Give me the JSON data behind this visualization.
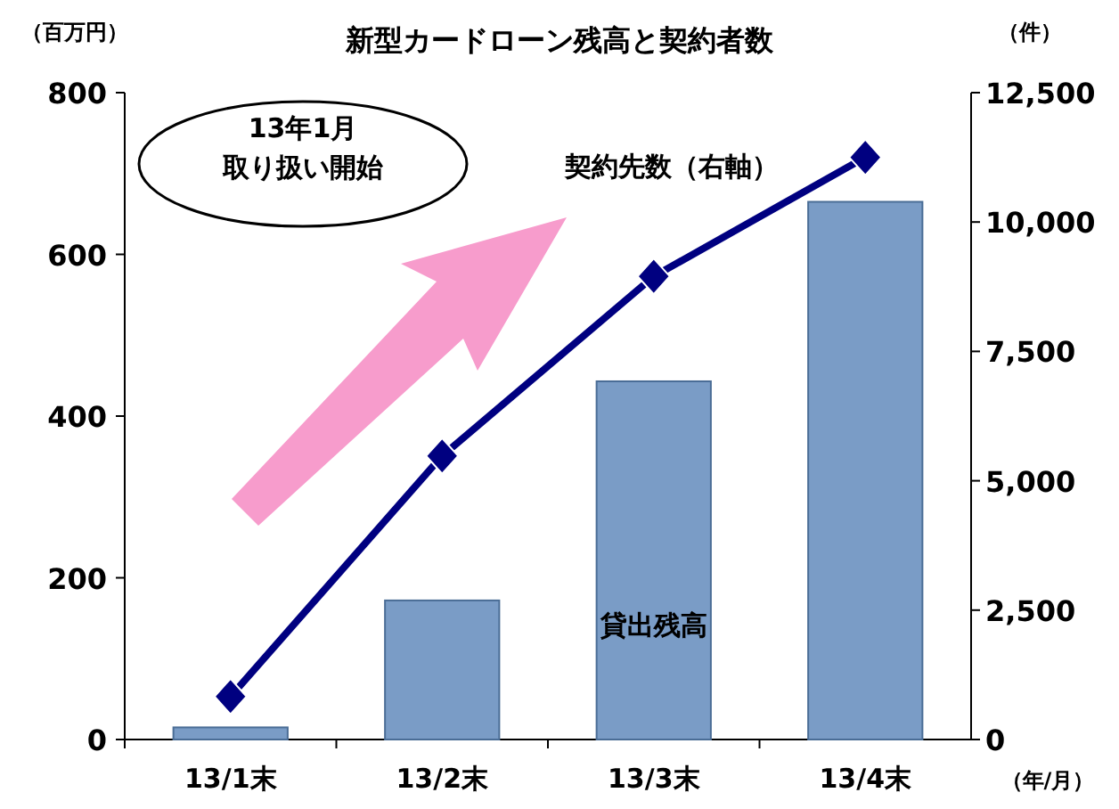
{
  "chart_data": {
    "type": "bar",
    "title": "新型カードローン残高と契約者数",
    "ylabel": "（百万円）",
    "y2label": "（件）",
    "xlabel": "（年/月）",
    "categories": [
      "13/1末",
      "13/2末",
      "13/3末",
      "13/4末"
    ],
    "series": [
      {
        "name": "貸出残高",
        "color": "#7a9cc6",
        "values": [
          15,
          172,
          443,
          665
        ]
      },
      {
        "name": "契約先数（右軸）",
        "type": "line",
        "axis": "y2",
        "color": "#000080",
        "marker": "diamond",
        "values": [
          830,
          5480,
          8950,
          11250
        ]
      }
    ],
    "ylim": [
      0,
      800
    ],
    "yticks": [
      0,
      200,
      400,
      600,
      800
    ],
    "y2lim": [
      0,
      12500
    ],
    "y2ticks": [
      0,
      {
        "value": 2500,
        "label": "2,500"
      },
      {
        "value": 5000,
        "label": "5,000"
      },
      {
        "value": 7500,
        "label": "7,500"
      },
      {
        "value": 10000,
        "label": "10,000"
      },
      {
        "value": 12500,
        "label": "12,500"
      }
    ],
    "annotations": [
      "13年1月",
      "取り扱い開始"
    ],
    "grid": false
  }
}
